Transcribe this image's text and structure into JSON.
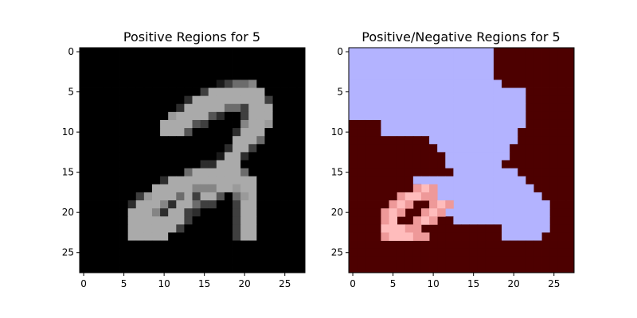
{
  "chart_data": [
    {
      "type": "heatmap",
      "title": "Positive Regions for 5",
      "xlabel": "",
      "ylabel": "",
      "colormap": "gray",
      "grid_size": [
        28,
        28
      ],
      "xlim": [
        -0.5,
        27.5
      ],
      "ylim": [
        27.5,
        -0.5
      ],
      "x_ticks": [
        0,
        5,
        10,
        15,
        20,
        25
      ],
      "y_ticks": [
        0,
        5,
        10,
        15,
        20,
        25
      ],
      "grid": false,
      "rows": [
        "0000000000000000000000000000",
        "0000000000000000000000000000",
        "0000000000000000000000000000",
        "0000000000000000000000000000",
        "0000000000000000013556000000",
        "0000000000000003888888800000",
        "0000000000000288888888830000",
        "0000000000002888885538880000",
        "0000000000078888420038880000",
        "0000000000888843000068870000",
        "0000000000888400000288800000",
        "0000000000000000000888500000",
        "0000000000000000002883000000",
        "0000000000000000018820000000",
        "0000000000000002288800000000",
        "0000000000000588888850000000",
        "0000000000288888888888000000",
        "0000000008888866688788000000",
        "0000000378885838840578000000",
        "0000002888628853300388000000",
        "0000008886288320000388000000",
        "0000008888888300000388000000",
        "0000008888883000000388000000",
        "0000008888800000000388000000",
        "0000000000000000000000000000",
        "0000000000000000000000000000",
        "0000000000000000000000000000",
        "0000000000000000000000000000"
      ],
      "levels": [
        "#000000",
        "#1a1a1a",
        "#2d2d2d",
        "#3f3f3f",
        "#555555",
        "#6c6c6c",
        "#858585",
        "#9a9a9a",
        "#aaaaaa"
      ]
    },
    {
      "type": "heatmap",
      "title": "Positive/Negative Regions for 5",
      "xlabel": "",
      "ylabel": "",
      "colormap": "bwr-masked",
      "grid_size": [
        28,
        28
      ],
      "xlim": [
        -0.5,
        27.5
      ],
      "ylim": [
        27.5,
        -0.5
      ],
      "x_ticks": [
        0,
        5,
        10,
        15,
        20,
        25
      ],
      "y_ticks": [
        0,
        5,
        10,
        15,
        20,
        25
      ],
      "grid": false,
      "rows": [
        "BBBBBBBBBBBBBBBBBBNNNNNNNNNN",
        "BBBBBBBBBBBBBBBBBBNNNNNNNNNN",
        "BBBBBBBBBBBBBBBBBBNNNNNNNNNN",
        "BBBBBBBBBBBBBBBBBBNNNNNNNNNN",
        "BBBBBBBBBBBBBBBBBBBNNNNNNNNN",
        "BBBBBBBBBBBBBBBBBBBBBBNNNNNN",
        "BBBBBBBBBBBBBBBBBBBBBBNNNNNN",
        "BBBBBBBBBBBBBBBBBBBBBBNNNNNN",
        "BBBBBBBBBBBBBBBBBBBBBBNNNNNN",
        "NNNNBBBBBBBBBBBBBBBBBBNNNNNN",
        "NNNNBBBBBBBBBBBBBBBBBNNNNNNN",
        "NNNNNNNNNNBBBBBBBBBBBNNNNNNN",
        "NNNNNNNNNNNBBBBBBBBBNNNNNNNN",
        "NNNNNNNNNNNNBBBBBBBBNNNNNNNN",
        "NNNNNNNNNNNNBBBBBBBNNNNNNNNN",
        "NNNNNNNNNNNNNBBBBBBBBNNNNNNN",
        "NNNNNNNNBBBBBBBBBBBBBBNNNNNN",
        "NNNNNNNNNBBBBBBBBBBBBBBNNNNN",
        "NNNNNNNNNNBBBBBBBBBBBBBBNNNN",
        "NNNNNNNNNNNBBBBBBBBBBBBBBNNN",
        "NNNNNNNNNNNNBBBBBBBBBBBBBNNN",
        "NNNNNNNNNNNNNBBBBBBBBBBBBNNN",
        "NNNNNNNNNNNNNNNNNNNBBBBBBNNN",
        "NNNNNNNNNNNNNNNNNNNBBBBBNNNN",
        "NNNNNNNNNNNNNNNNNNNNNNNNNNNN",
        "NNNNNNNNNNNNNNNNNNNNNNNNNNNN",
        "NNNNNNNNNNNNNNNNNNNNNNNNNNNN",
        "NNNNNNNNNNNNNNNNNNNNNNNNNNNN"
      ],
      "pink_cells": [
        [
          17,
          9,
          2
        ],
        [
          17,
          10,
          1
        ],
        [
          17,
          8,
          1
        ],
        [
          18,
          6,
          1
        ],
        [
          18,
          7,
          2
        ],
        [
          18,
          8,
          2
        ],
        [
          18,
          9,
          1
        ],
        [
          18,
          10,
          1
        ],
        [
          19,
          5,
          1
        ],
        [
          19,
          6,
          2
        ],
        [
          19,
          7,
          1
        ],
        [
          19,
          10,
          1
        ],
        [
          19,
          11,
          2
        ],
        [
          19,
          12,
          1
        ],
        [
          20,
          4,
          1
        ],
        [
          20,
          5,
          2
        ],
        [
          20,
          6,
          1
        ],
        [
          20,
          9,
          1
        ],
        [
          20,
          10,
          2
        ],
        [
          20,
          11,
          1
        ],
        [
          21,
          4,
          1
        ],
        [
          21,
          5,
          2
        ],
        [
          21,
          8,
          1
        ],
        [
          21,
          9,
          2
        ],
        [
          21,
          10,
          1
        ],
        [
          22,
          4,
          2
        ],
        [
          22,
          5,
          2
        ],
        [
          22,
          6,
          2
        ],
        [
          22,
          7,
          1
        ],
        [
          22,
          8,
          1
        ],
        [
          23,
          4,
          1
        ],
        [
          23,
          5,
          2
        ],
        [
          23,
          6,
          2
        ],
        [
          23,
          7,
          2
        ],
        [
          23,
          8,
          1
        ],
        [
          23,
          9,
          1
        ]
      ],
      "levels": {
        "B": "#b3b3ff",
        "N": "#4d0000",
        "pink": [
          "#b36666",
          "#ee9999",
          "#ffbcbc"
        ]
      }
    }
  ]
}
